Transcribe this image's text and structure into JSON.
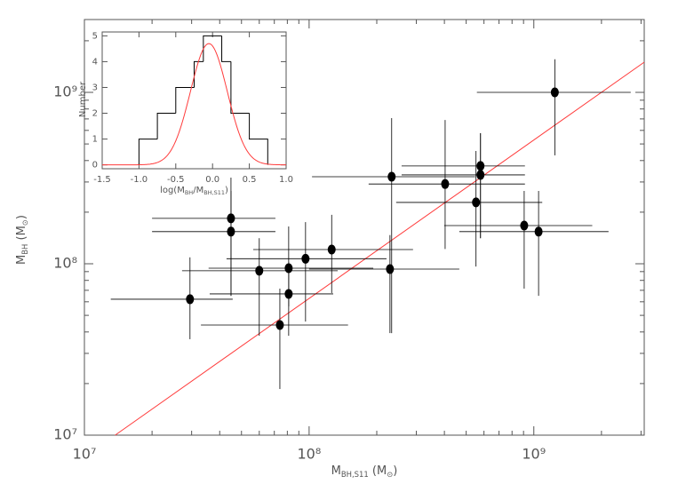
{
  "chart_data": [
    {
      "type": "scatter",
      "color": "#000000",
      "log_x": true,
      "log_y": true,
      "x": [
        29500000.0,
        44900000.0,
        44900000.0,
        60000000.0,
        74100000.0,
        81100000.0,
        81100000.0,
        96400000.0,
        126000000.0,
        229000000.0,
        233000000.0,
        403000000.0,
        553000000.0,
        579000000.0,
        579000000.0,
        906000000.0,
        1050000000.0,
        1240000000.0
      ],
      "y": [
        62100000.0,
        184000000.0,
        154000000.0,
        91000000.0,
        43900000.0,
        94200000.0,
        66700000.0,
        107000000.0,
        121000000.0,
        93100000.0,
        322000000.0,
        292000000.0,
        228000000.0,
        372000000.0,
        330000000.0,
        167000000.0,
        154000000.0,
        1000000000.0
      ],
      "x_low": [
        13100000.0,
        20000000.0,
        20000000.0,
        27200000.0,
        33000000.0,
        35700000.0,
        36100000.0,
        42900000.0,
        56400000.0,
        100000000.0,
        103000000.0,
        184000000.0,
        244000000.0,
        258000000.0,
        258000000.0,
        399000000.0,
        466000000.0,
        558000000.0
      ],
      "x_high": [
        45700000.0,
        70800000.0,
        70800000.0,
        134000000.0,
        149000000.0,
        193000000.0,
        128000000.0,
        221000000.0,
        290000000.0,
        466000000.0,
        548000000.0,
        913000000.0,
        1090000000.0,
        913000000.0,
        913000000.0,
        1820000000.0,
        2150000000.0,
        2700000000.0
      ],
      "y_low": [
        36300000.0,
        65000000.0,
        65000000.0,
        38000000.0,
        18600000.0,
        56400000.0,
        38000000.0,
        46000000.0,
        67500000.0,
        39400000.0,
        39400000.0,
        122000000.0,
        96400000.0,
        141000000.0,
        141000000.0,
        71600000.0,
        65000000.0,
        429000000.0
      ],
      "y_high": [
        109000000.0,
        318000000.0,
        266000000.0,
        141000000.0,
        71600000.0,
        165000000.0,
        102000000.0,
        175000000.0,
        193000000.0,
        147000000.0,
        708000000.0,
        690000000.0,
        455000000.0,
        578000000.0,
        578000000.0,
        266000000.0,
        266000000.0,
        1560000000.0
      ],
      "fit_line": {
        "x": [
          13700000.0,
          3100000000.0
        ],
        "y": [
          10000000.0,
          1500000000.0
        ],
        "color": "#ff3b3b"
      },
      "xlim": [
        10000000.0,
        3100000000.0
      ],
      "ylim": [
        10000000.0,
        2660000000.0
      ],
      "xticks": [
        {
          "value": 10000000.0,
          "label": "10⁷"
        },
        {
          "value": 100000000.0,
          "label": "10⁸"
        },
        {
          "value": 1000000000.0,
          "label": "10⁹"
        }
      ],
      "yticks": [
        {
          "value": 10000000.0,
          "label": "10⁷"
        },
        {
          "value": 100000000.0,
          "label": "10⁸"
        },
        {
          "value": 1000000000.0,
          "label": "10⁹"
        }
      ],
      "xminorticks": [
        20000000.0,
        30000000.0,
        40000000.0,
        50000000.0,
        60000000.0,
        70000000.0,
        80000000.0,
        90000000.0,
        200000000.0,
        300000000.0,
        400000000.0,
        500000000.0,
        600000000.0,
        700000000.0,
        800000000.0,
        900000000.0,
        2000000000.0,
        3000000000.0
      ],
      "yminorticks": [
        20000000.0,
        30000000.0,
        40000000.0,
        50000000.0,
        60000000.0,
        70000000.0,
        80000000.0,
        90000000.0,
        200000000.0,
        300000000.0,
        400000000.0,
        500000000.0,
        600000000.0,
        700000000.0,
        800000000.0,
        900000000.0,
        2000000000.0
      ],
      "xlabel": [
        "M",
        "BH,S11",
        " (M",
        "⊙",
        ")"
      ],
      "ylabel": [
        "M",
        "BH",
        " (M",
        "⊙",
        ")"
      ]
    },
    {
      "type": "histogram",
      "color": "#000000",
      "bins": [
        -1.0,
        -0.75,
        -0.5,
        -0.25,
        -0.125,
        0.125,
        0.25,
        0.5,
        0.75
      ],
      "counts": [
        1,
        2,
        3,
        4,
        5,
        4,
        2,
        1
      ],
      "curve": {
        "mean": -0.05,
        "sigma": 0.25,
        "amplitude": 4.7,
        "color": "#ff3b3b"
      },
      "xlim": [
        -1.5,
        1.0
      ],
      "ylim": [
        -0.15,
        5.15
      ],
      "xticks": [
        -1.5,
        {
          "value": -1.0,
          "label": "-1.0"
        },
        -0.5,
        {
          "value": 0.0,
          "label": "0.0"
        },
        0.5,
        {
          "value": 1.0,
          "label": "1.0"
        }
      ],
      "yticks": [
        0,
        1,
        2,
        3,
        4,
        5
      ],
      "xlabel": [
        "log(M",
        "BH",
        "/M",
        "BH,S11",
        ")"
      ],
      "ylabel": "Number"
    }
  ]
}
